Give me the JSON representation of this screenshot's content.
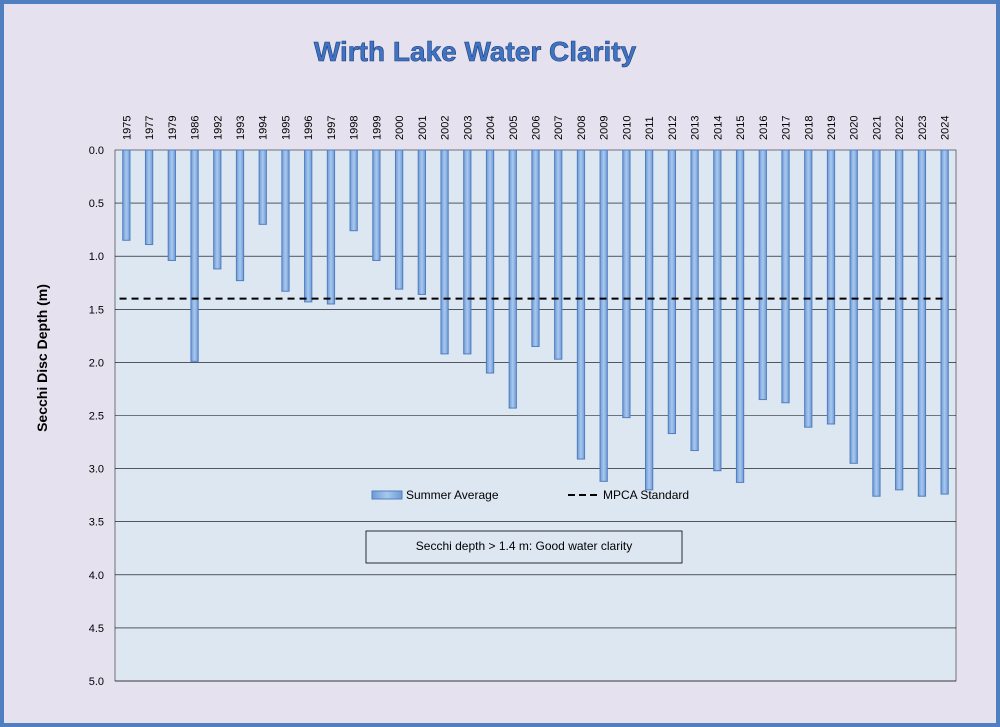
{
  "chart_data": {
    "type": "bar",
    "title": "Wirth Lake Water Clarity",
    "ylabel": "Secchi Disc Depth (m)",
    "xlabel": "",
    "y_inverted": true,
    "ylim": [
      0,
      5
    ],
    "y_ticks": [
      "0.0",
      "0.5",
      "1.0",
      "1.5",
      "2.0",
      "2.5",
      "3.0",
      "3.5",
      "4.0",
      "4.5",
      "5.0"
    ],
    "grid": true,
    "legend_position": "inside-middle",
    "categories": [
      "1975",
      "1977",
      "1979",
      "1986",
      "1992",
      "1993",
      "1994",
      "1995",
      "1996",
      "1997",
      "1998",
      "1999",
      "2000",
      "2001",
      "2002",
      "2003",
      "2004",
      "2005",
      "2006",
      "2007",
      "2008",
      "2009",
      "2010",
      "2011",
      "2012",
      "2013",
      "2014",
      "2015",
      "2016",
      "2017",
      "2018",
      "2019",
      "2020",
      "2021",
      "2022",
      "2023",
      "2024"
    ],
    "series": [
      {
        "name": "Summer Average",
        "color": "#8db3e2",
        "values": [
          0.85,
          0.89,
          1.04,
          1.99,
          1.12,
          1.23,
          0.7,
          1.33,
          1.43,
          1.45,
          0.76,
          1.04,
          1.31,
          1.36,
          1.92,
          1.92,
          2.1,
          2.43,
          1.85,
          1.97,
          2.91,
          3.12,
          2.52,
          3.2,
          2.67,
          2.83,
          3.02,
          3.13,
          2.35,
          2.38,
          2.61,
          2.58,
          2.95,
          3.26,
          3.2,
          3.26,
          3.24
        ]
      }
    ],
    "reference_line": {
      "name": "MPCA Standard",
      "value": 1.4,
      "style": "dashed",
      "color": "#000000"
    },
    "annotation": "Secchi depth  > 1.4 m: Good water clarity"
  }
}
